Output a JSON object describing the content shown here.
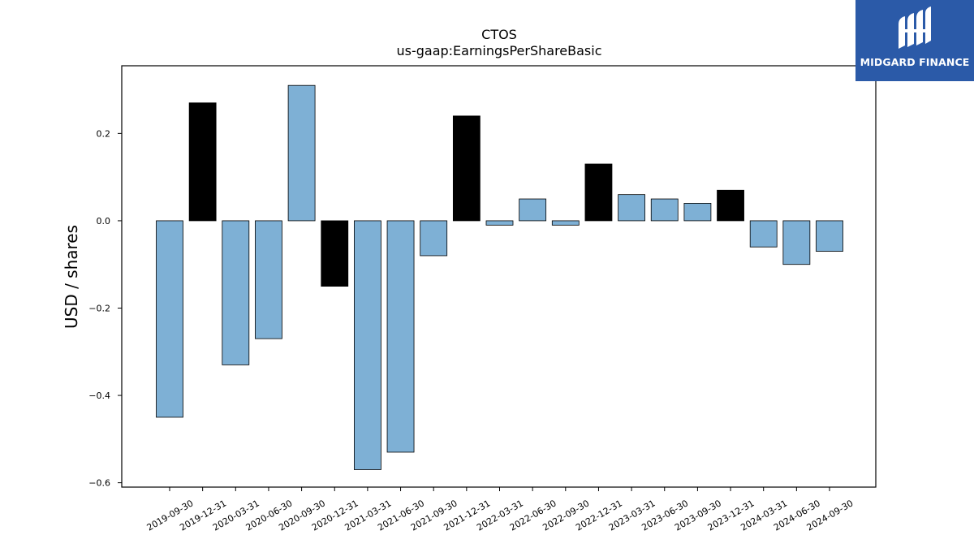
{
  "brand": {
    "name": "MIDGARD FINANCE",
    "logo_color": "#2b5aa8"
  },
  "chart_data": {
    "type": "bar",
    "title": "CTOS",
    "subtitle": "us-gaap:EarningsPerShareBasic",
    "xlabel": "",
    "ylabel": "USD / shares",
    "ylim": [
      -0.61,
      0.355
    ],
    "yticks": [
      -0.6,
      -0.4,
      -0.2,
      0.0,
      0.2
    ],
    "ytick_labels": [
      "−0.6",
      "−0.4",
      "−0.2",
      "0.0",
      "0.2"
    ],
    "grid": false,
    "legend": "none",
    "colors": {
      "quarter": "#7eb0d5",
      "fiscal_q4": "#000000",
      "edge": "#000000"
    },
    "categories": [
      "2019-09-30",
      "2019-12-31",
      "2020-03-31",
      "2020-06-30",
      "2020-09-30",
      "2020-12-31",
      "2021-03-31",
      "2021-06-30",
      "2021-09-30",
      "2021-12-31",
      "2022-03-31",
      "2022-06-30",
      "2022-09-30",
      "2022-12-31",
      "2023-03-31",
      "2023-06-30",
      "2023-09-30",
      "2023-12-31",
      "2024-03-31",
      "2024-06-30",
      "2024-09-30"
    ],
    "values": [
      -0.45,
      0.27,
      -0.33,
      -0.27,
      0.31,
      -0.15,
      -0.57,
      -0.53,
      -0.08,
      0.24,
      -0.01,
      0.05,
      -0.01,
      0.13,
      0.06,
      0.05,
      0.04,
      0.07,
      -0.06,
      -0.1,
      -0.07
    ],
    "highlight": [
      false,
      true,
      false,
      false,
      false,
      true,
      false,
      false,
      false,
      true,
      false,
      false,
      false,
      true,
      false,
      false,
      false,
      true,
      false,
      false,
      false
    ]
  }
}
